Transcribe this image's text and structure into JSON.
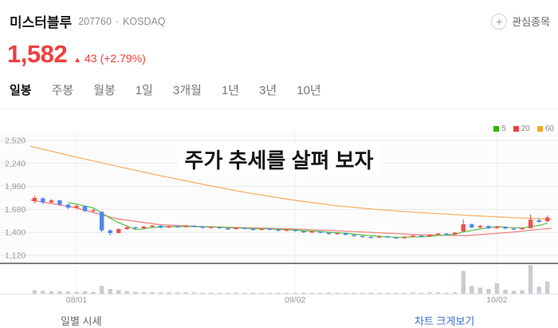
{
  "header": {
    "stock_name": "미스터블루",
    "stock_code": "207760",
    "separator": "·",
    "market": "KOSDAQ",
    "watchlist_plus": "+",
    "watchlist_label": "관심종목"
  },
  "price": {
    "current": "1,582",
    "arrow": "▲",
    "change": "43",
    "change_pct": "(+2.79%)"
  },
  "tabs": {
    "items": [
      {
        "label": "일봉",
        "active": true
      },
      {
        "label": "주봉",
        "active": false
      },
      {
        "label": "월봉",
        "active": false
      },
      {
        "label": "1일",
        "active": false
      },
      {
        "label": "3개월",
        "active": false
      },
      {
        "label": "1년",
        "active": false
      },
      {
        "label": "3년",
        "active": false
      },
      {
        "label": "10년",
        "active": false
      }
    ]
  },
  "overlay": {
    "caption": "주가 추세를 살펴 보자"
  },
  "footer": {
    "left_label": "일별 시세",
    "right_link": "차트 크게보기"
  },
  "chart_data": {
    "type": "candlestick",
    "title": "미스터블루 일봉 차트",
    "ylim": [
      1120,
      2520
    ],
    "y_ticks": [
      {
        "label": "2,520",
        "value": 2520
      },
      {
        "label": "2,240",
        "value": 2240
      },
      {
        "label": "1,960",
        "value": 1960
      },
      {
        "label": "1,680",
        "value": 1680
      },
      {
        "label": "1,400",
        "value": 1400
      },
      {
        "label": "1,120",
        "value": 1120
      }
    ],
    "x_labels": [
      {
        "label": "08/01",
        "index": 5
      },
      {
        "label": "09/02",
        "index": 31
      },
      {
        "label": "10/02",
        "index": 55
      }
    ],
    "legend": [
      {
        "label": "5",
        "color": "#2db400"
      },
      {
        "label": "20",
        "color": "#f03e3e"
      },
      {
        "label": "60",
        "color": "#f5a623"
      }
    ],
    "colors": {
      "up": "#ef4f4f",
      "down": "#4f86ec",
      "volume": "#c9ccd2",
      "ma5": "#57c13e",
      "ma20": "#ef8585",
      "ma60": "#f6b26b"
    },
    "candles": [
      [
        1780,
        1820,
        1755,
        1850,
        40
      ],
      [
        1815,
        1765,
        1745,
        1830,
        34
      ],
      [
        1765,
        1790,
        1750,
        1806,
        28
      ],
      [
        1790,
        1738,
        1724,
        1800,
        30
      ],
      [
        1738,
        1700,
        1685,
        1746,
        26
      ],
      [
        1700,
        1722,
        1690,
        1734,
        22
      ],
      [
        1722,
        1660,
        1650,
        1728,
        30
      ],
      [
        1660,
        1672,
        1645,
        1690,
        20
      ],
      [
        1650,
        1425,
        1400,
        1660,
        90
      ],
      [
        1425,
        1392,
        1362,
        1438,
        55
      ],
      [
        1392,
        1440,
        1385,
        1452,
        40
      ],
      [
        1440,
        1462,
        1430,
        1475,
        30
      ],
      [
        1462,
        1450,
        1438,
        1470,
        22
      ],
      [
        1450,
        1470,
        1442,
        1480,
        20
      ],
      [
        1470,
        1482,
        1458,
        1492,
        18
      ],
      [
        1482,
        1460,
        1450,
        1488,
        16
      ],
      [
        1460,
        1476,
        1452,
        1485,
        15
      ],
      [
        1476,
        1464,
        1455,
        1482,
        14
      ],
      [
        1464,
        1481,
        1458,
        1490,
        16
      ],
      [
        1481,
        1470,
        1460,
        1488,
        13
      ],
      [
        1470,
        1455,
        1445,
        1475,
        12
      ],
      [
        1455,
        1466,
        1448,
        1472,
        12
      ],
      [
        1466,
        1450,
        1440,
        1470,
        11
      ],
      [
        1450,
        1440,
        1430,
        1458,
        10
      ],
      [
        1440,
        1456,
        1434,
        1462,
        12
      ],
      [
        1456,
        1446,
        1436,
        1460,
        10
      ],
      [
        1446,
        1430,
        1420,
        1452,
        12
      ],
      [
        1430,
        1446,
        1424,
        1452,
        11
      ],
      [
        1446,
        1436,
        1426,
        1450,
        10
      ],
      [
        1436,
        1420,
        1410,
        1440,
        12
      ],
      [
        1420,
        1432,
        1414,
        1438,
        10
      ],
      [
        1432,
        1416,
        1406,
        1436,
        10
      ],
      [
        1416,
        1400,
        1392,
        1420,
        12
      ],
      [
        1400,
        1412,
        1394,
        1418,
        9
      ],
      [
        1412,
        1396,
        1386,
        1416,
        10
      ],
      [
        1396,
        1380,
        1372,
        1400,
        12
      ],
      [
        1380,
        1392,
        1374,
        1398,
        9
      ],
      [
        1392,
        1370,
        1362,
        1396,
        11
      ],
      [
        1370,
        1356,
        1346,
        1374,
        12
      ],
      [
        1356,
        1346,
        1336,
        1360,
        10
      ],
      [
        1346,
        1336,
        1326,
        1350,
        12
      ],
      [
        1336,
        1352,
        1330,
        1358,
        11
      ],
      [
        1352,
        1340,
        1330,
        1356,
        9
      ],
      [
        1340,
        1330,
        1320,
        1346,
        10
      ],
      [
        1330,
        1346,
        1324,
        1352,
        11
      ],
      [
        1346,
        1362,
        1340,
        1368,
        13
      ],
      [
        1362,
        1350,
        1342,
        1366,
        10
      ],
      [
        1350,
        1372,
        1344,
        1378,
        14
      ],
      [
        1372,
        1386,
        1366,
        1392,
        14
      ],
      [
        1386,
        1376,
        1366,
        1390,
        11
      ],
      [
        1376,
        1398,
        1370,
        1404,
        16
      ],
      [
        1412,
        1498,
        1405,
        1560,
        260
      ],
      [
        1498,
        1460,
        1448,
        1510,
        90
      ],
      [
        1460,
        1478,
        1452,
        1492,
        70
      ],
      [
        1478,
        1452,
        1440,
        1484,
        55
      ],
      [
        1452,
        1470,
        1444,
        1480,
        120
      ],
      [
        1470,
        1448,
        1436,
        1476,
        45
      ],
      [
        1448,
        1438,
        1428,
        1456,
        35
      ],
      [
        1438,
        1452,
        1430,
        1462,
        40
      ],
      [
        1452,
        1555,
        1446,
        1620,
        330
      ],
      [
        1548,
        1530,
        1515,
        1572,
        80
      ],
      [
        1535,
        1582,
        1525,
        1605,
        140
      ]
    ],
    "ma20": [
      1795,
      1705,
      1565,
      1492,
      1470,
      1456,
      1443,
      1421,
      1396,
      1371,
      1360,
      1398,
      1452
    ],
    "ma60": [
      2450,
      2325,
      2205,
      2090,
      1982,
      1882,
      1798,
      1728,
      1678,
      1640,
      1610,
      1582,
      1560
    ]
  }
}
